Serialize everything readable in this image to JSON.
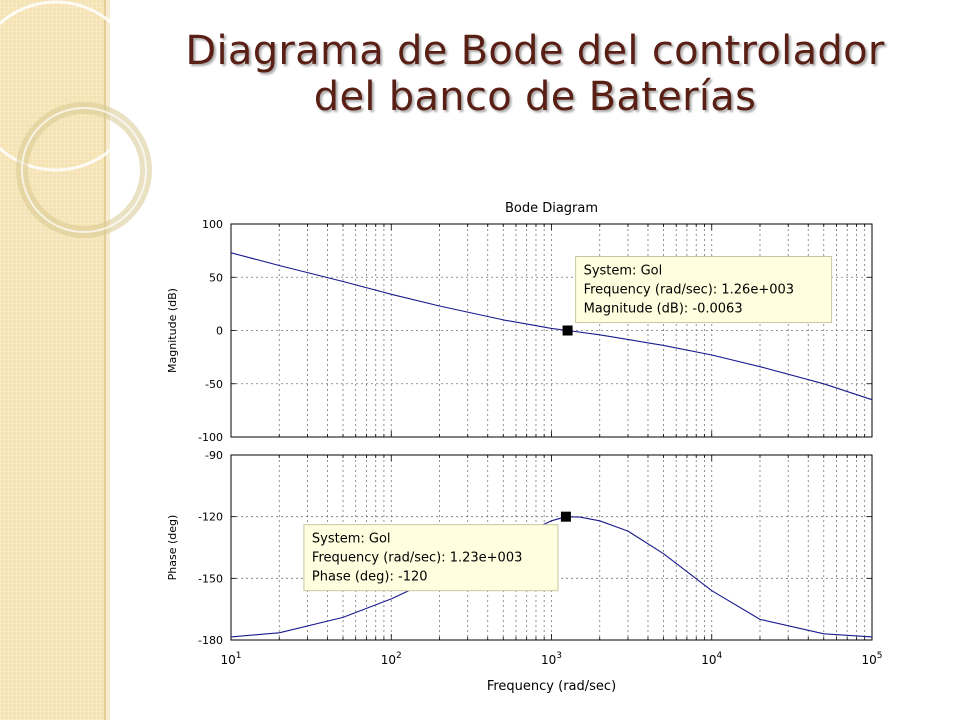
{
  "slide": {
    "title_line1": "Diagrama de Bode del controlador",
    "title_line2": "del banco de Baterías"
  },
  "colors": {
    "title": "#5a1f14",
    "curve": "#1a1a8c",
    "tooltip_bg": "#ffffe0",
    "tooltip_border": "#c8c8a0",
    "band": "#f5e3b4"
  },
  "chart_data": {
    "type": "line",
    "title": "Bode Diagram",
    "xlabel": "Frequency  (rad/sec)",
    "xscale": "log",
    "xlim": [
      10,
      100000
    ],
    "x_tick_bases": [
      "10",
      "10",
      "10",
      "10",
      "10"
    ],
    "x_tick_exps": [
      "1",
      "2",
      "3",
      "4",
      "5"
    ],
    "grid": true,
    "panels": [
      {
        "name": "magnitude",
        "ylabel": "Magnitude (dB)",
        "ylim": [
          -100,
          100
        ],
        "yticks": [
          100,
          50,
          0,
          -50,
          -100
        ],
        "series": [
          {
            "x": [
              10,
              20,
              50,
              100,
              200,
              500,
              1000,
              1260,
              2000,
              5000,
              10000,
              20000,
              50000,
              100000
            ],
            "y": [
              73,
              61,
              46,
              34,
              23,
              10,
              2,
              0,
              -4,
              -14,
              -23,
              -34,
              -50,
              -65
            ]
          }
        ],
        "datatip": {
          "x": 1260,
          "y": -0.0063,
          "lines": [
            "System: Gol",
            "Frequency (rad/sec):  1.26e+003",
            "Magnitude (dB): -0.0063"
          ]
        }
      },
      {
        "name": "phase",
        "ylabel": "Phase (deg)",
        "ylim": [
          -180,
          -90
        ],
        "yticks": [
          -90,
          -120,
          -150,
          -180
        ],
        "series": [
          {
            "x": [
              10,
              20,
              50,
              100,
              200,
              500,
              1000,
              1230,
              1500,
              2000,
              3000,
              5000,
              10000,
              20000,
              50000,
              100000
            ],
            "y": [
              -178.5,
              -176.5,
              -169,
              -160,
              -149,
              -133,
              -122,
              -120,
              -120.2,
              -122,
              -127,
              -138,
              -156,
              -170,
              -177,
              -178.5
            ]
          }
        ],
        "datatip": {
          "x": 1230,
          "y": -120,
          "lines": [
            "System: Gol",
            "Frequency (rad/sec):  1.23e+003",
            "Phase (deg): -120"
          ]
        }
      }
    ]
  }
}
